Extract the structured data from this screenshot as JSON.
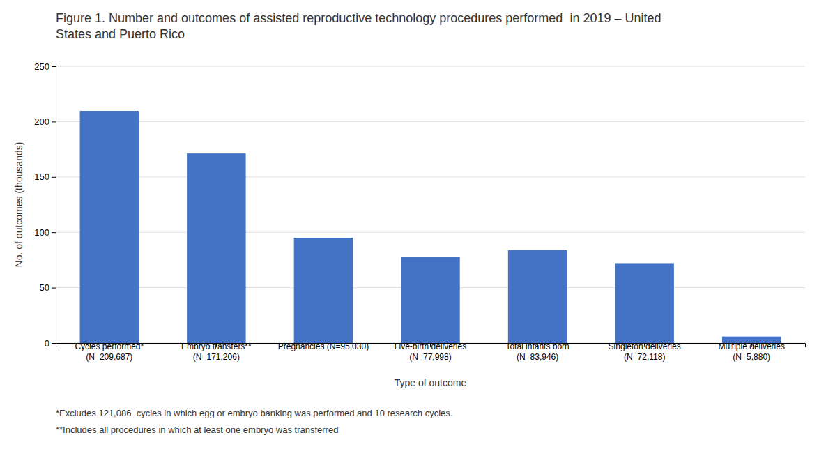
{
  "chart_data": {
    "type": "bar",
    "title": "Figure 1. Number and outcomes of assisted reproductive technology procedures performed  in 2019 – United\nStates and Puerto Rico",
    "categories": [
      "Cycles performed*\n(N=209,687)",
      "Embryo transfers**\n(N=171,206)",
      "Pregnancies (N=95,030)",
      "Live-birth deliveries\n(N=77,998)",
      "Total infants born\n(N=83,946)",
      "Singleton deliveries\n(N=72,118)",
      "Multiple deliveries\n(N=5,880)"
    ],
    "values": [
      209.687,
      171.206,
      95.03,
      77.998,
      83.946,
      72.118,
      5.88
    ],
    "color": "#4472C4",
    "xlabel": "Type of outcome",
    "ylabel": "No. of outcomes (thousands)",
    "ylim": [
      0,
      250
    ],
    "yticks": [
      0,
      50,
      100,
      150,
      200,
      250
    ],
    "grid": true,
    "annotations": [
      "*Excludes 121,086  cycles in which egg or embryo banking was performed and 10 research cycles.",
      "**Includes all procedures in which at least one embryo was transferred"
    ]
  }
}
